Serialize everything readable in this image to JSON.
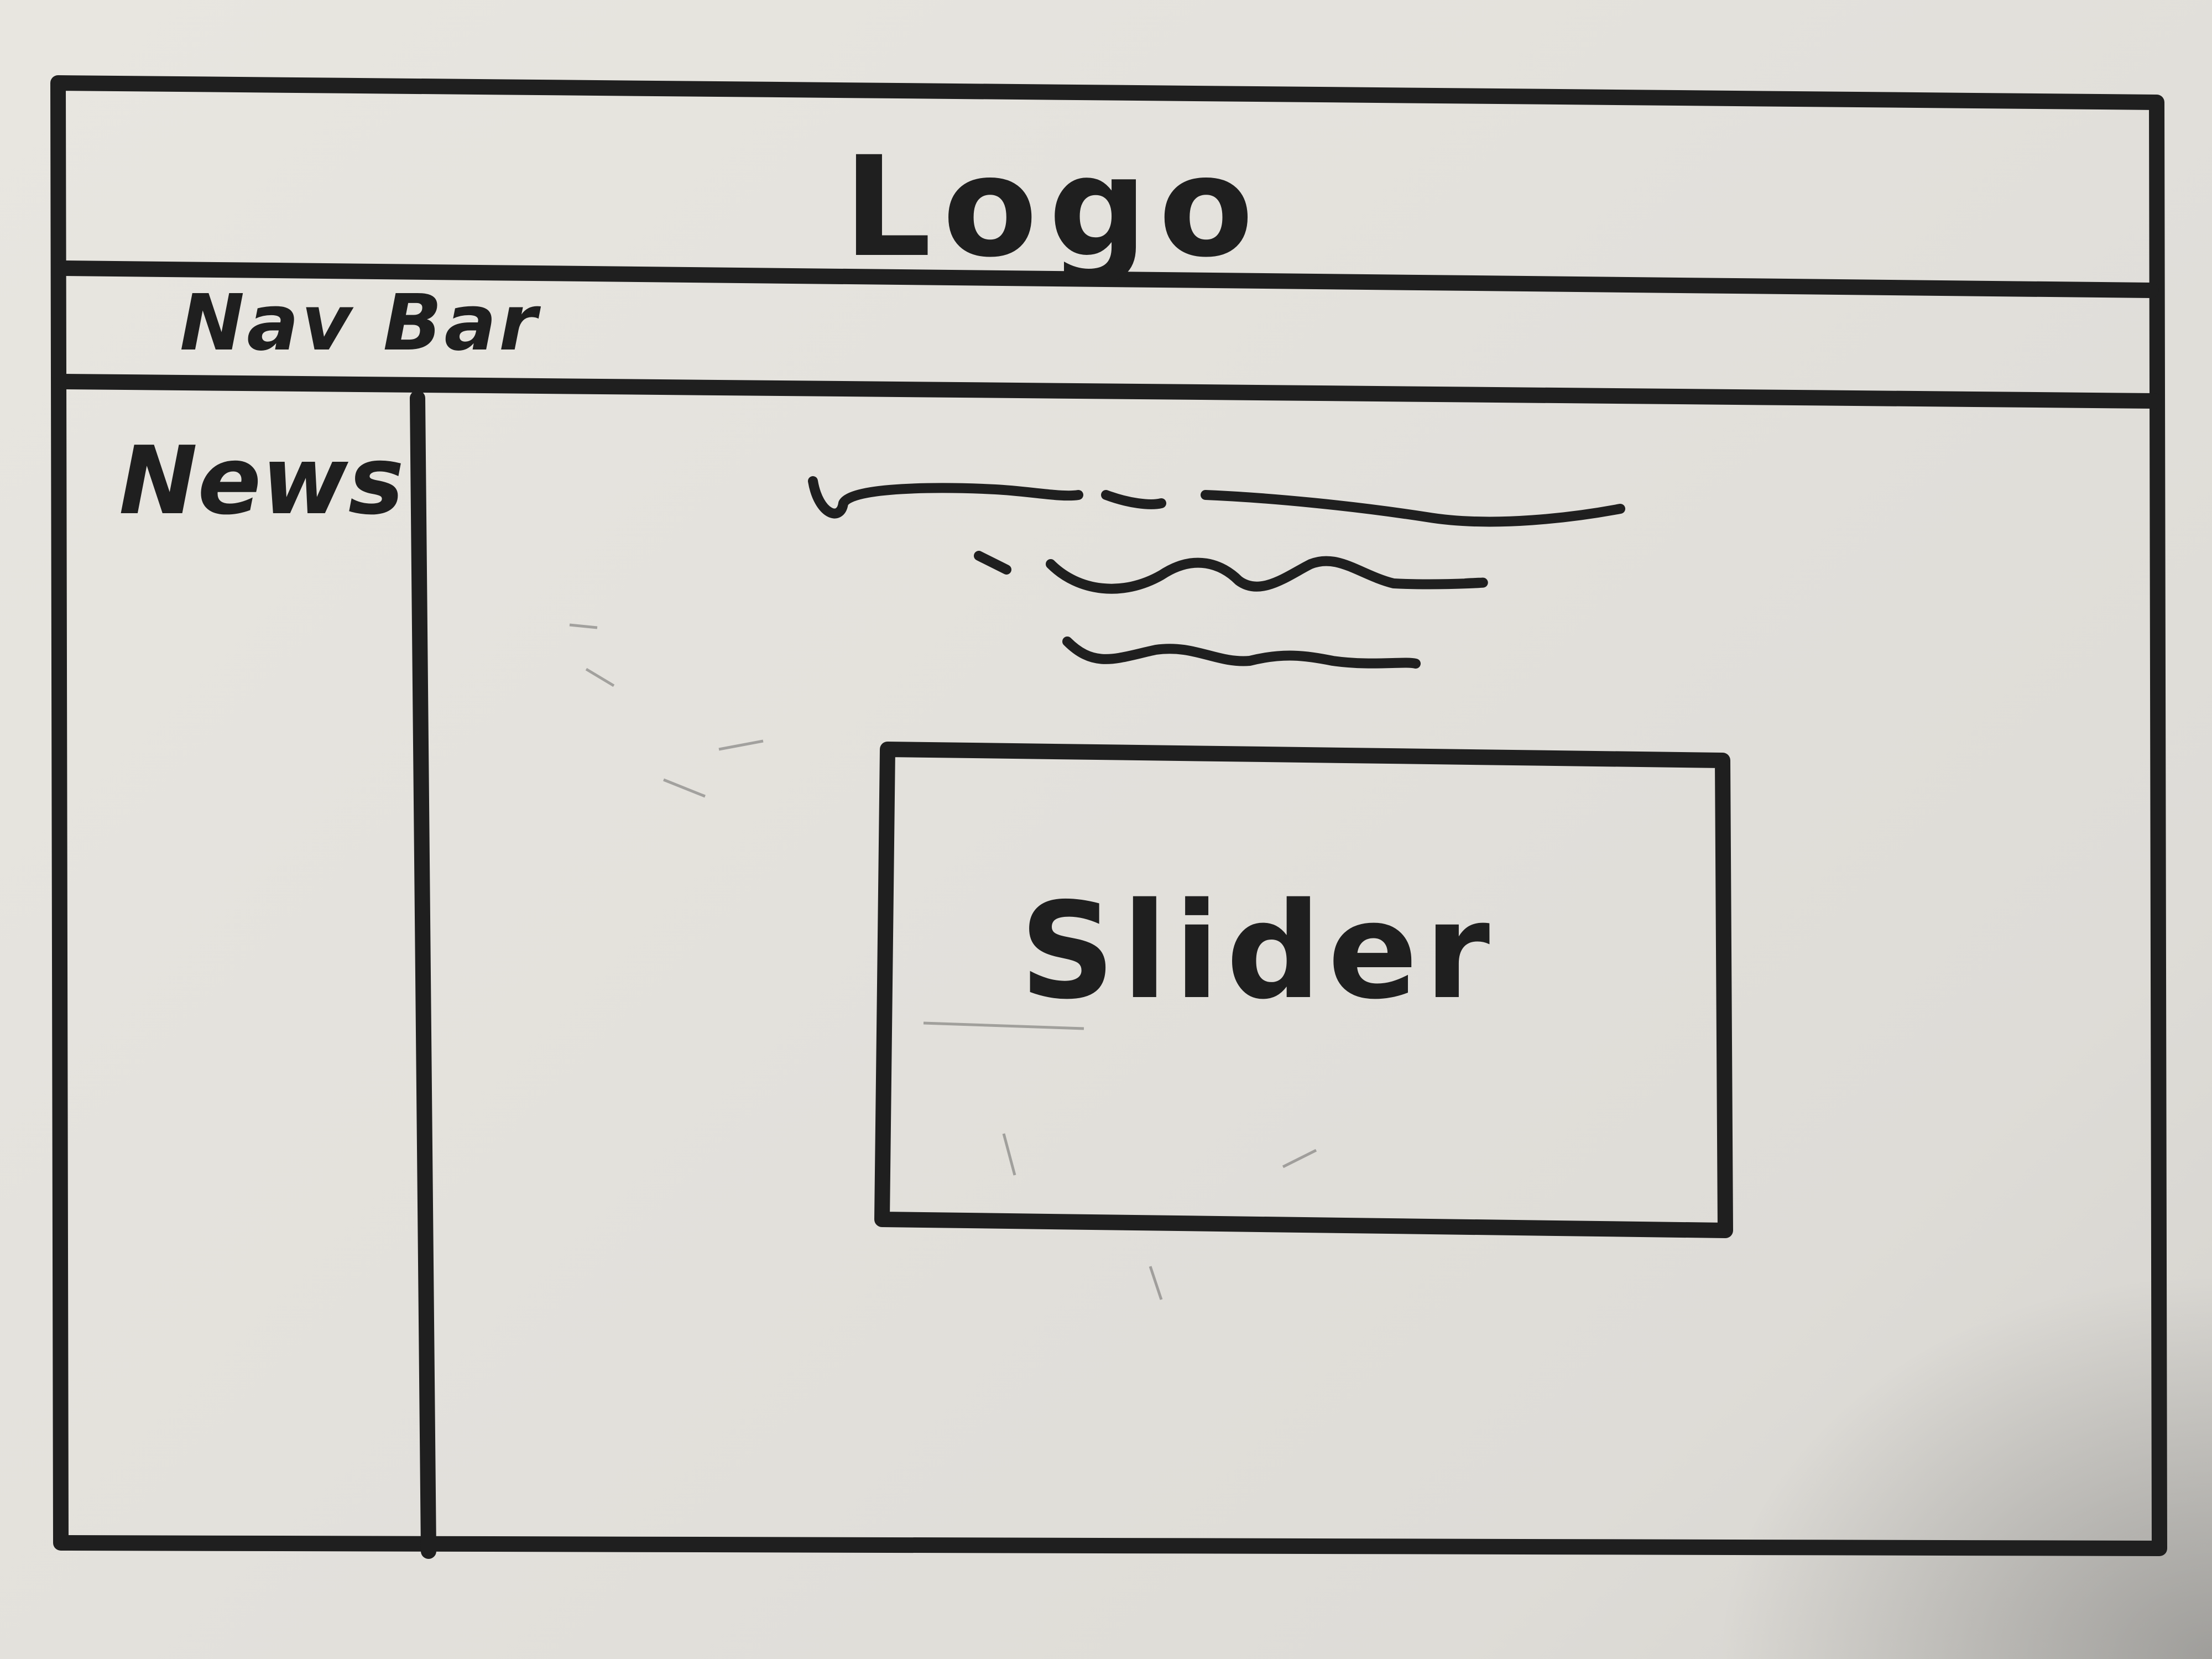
{
  "header": {
    "logo_label": "Logo"
  },
  "nav": {
    "label": "Nav Bar"
  },
  "sidebar": {
    "label": "News"
  },
  "main": {
    "text_placeholder_lines": 3,
    "slider": {
      "label": "Slider"
    }
  },
  "colors": {
    "paper": "#e3e1dc",
    "ink": "#1f1f1f"
  }
}
